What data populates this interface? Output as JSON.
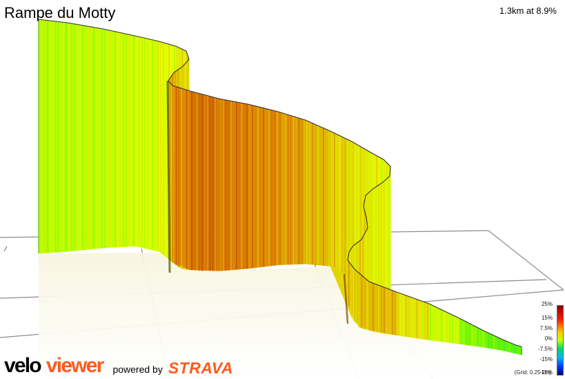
{
  "segment": {
    "title": "Rampe du Motty",
    "summary": "1.3km at 8.9%"
  },
  "legend": {
    "ticks": [
      "25%",
      "15%",
      "7.5%",
      "0%",
      "-7.5%",
      "-15%",
      "-25%"
    ],
    "grid_note": "(Grid: 0.25 km)"
  },
  "branding": {
    "velo": "velo",
    "viewer": "viewer",
    "powered_by": "powered by",
    "strava": "STRAVA"
  },
  "colors": {
    "brand_orange": "#ff5a1f",
    "ribbon_outline": "#333333",
    "grid_line": "#8a8a8a"
  },
  "chart_data": {
    "type": "area",
    "title": "Rampe du Motty",
    "xlabel": "",
    "ylabel": "",
    "distance_km": 1.3,
    "average_gradient_percent": 8.9,
    "gradient_scale_percent": [
      25,
      15,
      7.5,
      0,
      -7.5,
      -15,
      -25
    ],
    "grid_spacing_km": 0.25,
    "grid": true,
    "legend_placement": "bottom-right",
    "profile": [
      {
        "distance_km": 0.0,
        "gradient_percent": 4
      },
      {
        "distance_km": 0.1,
        "gradient_percent": 5
      },
      {
        "distance_km": 0.2,
        "gradient_percent": 8
      },
      {
        "distance_km": 0.3,
        "gradient_percent": 10
      },
      {
        "distance_km": 0.4,
        "gradient_percent": 13
      },
      {
        "distance_km": 0.5,
        "gradient_percent": 11
      },
      {
        "distance_km": 0.6,
        "gradient_percent": 7
      },
      {
        "distance_km": 0.7,
        "gradient_percent": 6
      },
      {
        "distance_km": 0.8,
        "gradient_percent": 8
      },
      {
        "distance_km": 0.9,
        "gradient_percent": 8
      },
      {
        "distance_km": 1.0,
        "gradient_percent": 9
      },
      {
        "distance_km": 1.1,
        "gradient_percent": 10
      },
      {
        "distance_km": 1.2,
        "gradient_percent": 1
      },
      {
        "distance_km": 1.3,
        "gradient_percent": 0
      }
    ]
  }
}
